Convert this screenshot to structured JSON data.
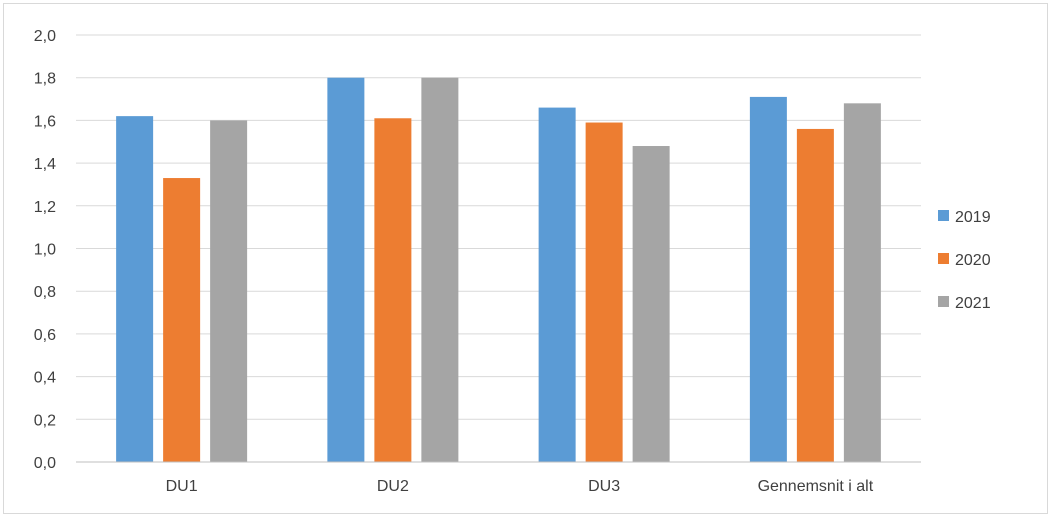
{
  "chart_data": {
    "type": "bar",
    "title": "",
    "xlabel": "",
    "ylabel": "",
    "categories": [
      "DU1",
      "DU2",
      "DU3",
      "Gennemsnit i alt"
    ],
    "series": [
      {
        "name": "2019",
        "color": "#5b9bd5",
        "values": [
          1.62,
          1.8,
          1.66,
          1.71
        ]
      },
      {
        "name": "2020",
        "color": "#ed7d31",
        "values": [
          1.33,
          1.61,
          1.59,
          1.56
        ]
      },
      {
        "name": "2021",
        "color": "#a5a5a5",
        "values": [
          1.6,
          1.8,
          1.48,
          1.68
        ]
      }
    ],
    "ylim": [
      0,
      2.0
    ],
    "yticks": [
      "0,0",
      "0,2",
      "0,4",
      "0,6",
      "0,8",
      "1,0",
      "1,2",
      "1,4",
      "1,6",
      "1,8",
      "2,0"
    ],
    "grid": true,
    "legend_position": "right"
  }
}
